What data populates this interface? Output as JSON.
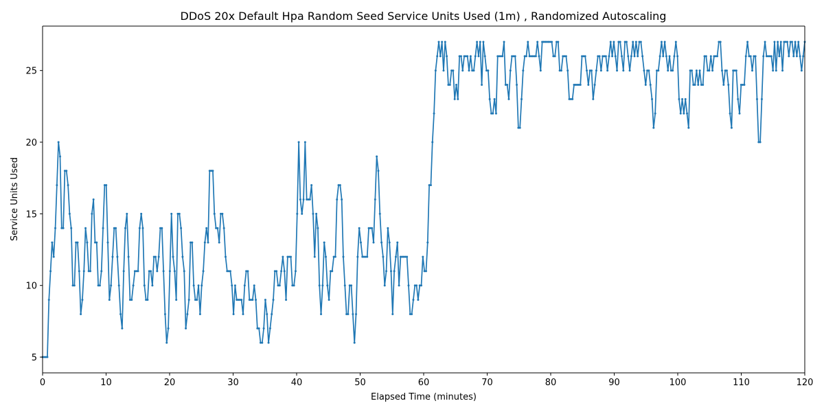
{
  "chart_data": {
    "type": "line",
    "title": "DDoS 20x Default Hpa Random Seed Service Units Used (1m) , Randomized Autoscaling",
    "xlabel": "Elapsed Time (minutes)",
    "ylabel": "Service Units Used",
    "xlim": [
      0,
      120
    ],
    "ylim": [
      3.9,
      28.1
    ],
    "xticks": [
      0,
      10,
      20,
      30,
      40,
      50,
      60,
      70,
      80,
      90,
      100,
      110,
      120
    ],
    "yticks": [
      5,
      10,
      15,
      20,
      25
    ],
    "grid": false,
    "color": "#1f77b4",
    "series": [
      {
        "values": [
          5,
          5,
          5,
          5,
          9,
          11,
          13,
          12,
          14,
          17,
          20,
          19,
          14,
          14,
          18,
          18,
          17,
          15,
          14,
          10,
          10,
          13,
          13,
          11,
          8,
          9,
          11,
          14,
          13,
          11,
          11,
          15,
          16,
          13,
          13,
          10,
          10,
          11,
          14,
          17,
          17,
          13,
          9,
          10,
          12,
          14,
          14,
          12,
          10,
          8,
          7,
          11,
          14,
          15,
          12,
          9,
          9,
          10,
          11,
          11,
          11,
          14,
          15,
          14,
          10,
          9,
          9,
          11,
          11,
          10,
          12,
          12,
          11,
          12,
          14,
          14,
          11,
          8,
          6,
          7,
          11,
          15,
          12,
          11,
          9,
          15,
          15,
          14,
          12,
          11,
          7,
          8,
          9,
          13,
          13,
          10,
          9,
          9,
          10,
          8,
          10,
          11,
          13,
          14,
          13,
          18,
          18,
          18,
          15,
          14,
          14,
          13,
          15,
          15,
          14,
          12,
          11,
          11,
          11,
          10,
          8,
          10,
          9,
          9,
          9,
          9,
          8,
          10,
          11,
          11,
          9,
          9,
          9,
          10,
          9,
          7,
          7,
          6,
          6,
          7,
          9,
          8,
          6,
          7,
          8,
          9,
          11,
          11,
          10,
          10,
          11,
          12,
          11,
          9,
          12,
          12,
          12,
          10,
          10,
          11,
          15,
          20,
          16,
          15,
          16,
          20,
          16,
          16,
          16,
          17,
          15,
          12,
          15,
          14,
          10,
          8,
          10,
          13,
          12,
          10,
          9,
          11,
          11,
          12,
          12,
          16,
          17,
          17,
          16,
          12,
          10,
          8,
          8,
          10,
          10,
          8,
          6,
          8,
          12,
          14,
          13,
          12,
          12,
          12,
          12,
          14,
          14,
          14,
          13,
          16,
          19,
          18,
          15,
          13,
          12,
          10,
          11,
          14,
          13,
          11,
          8,
          11,
          12,
          13,
          10,
          12,
          12,
          12,
          12,
          12,
          10,
          8,
          8,
          9,
          10,
          10,
          9,
          10,
          10,
          12,
          11,
          11,
          13,
          17,
          17,
          20,
          22,
          25,
          26,
          27,
          26,
          27,
          25,
          27,
          26,
          24,
          24,
          25,
          25,
          23,
          24,
          23,
          26,
          26,
          25,
          26,
          26,
          26,
          25,
          26,
          25,
          25,
          26,
          27,
          26,
          27,
          24,
          27,
          26,
          25,
          25,
          23,
          22,
          22,
          23,
          22,
          26,
          26,
          26,
          26,
          27,
          24,
          24,
          23,
          25,
          26,
          26,
          26,
          24,
          21,
          21,
          23,
          25,
          26,
          26,
          27,
          26,
          26,
          26,
          26,
          26,
          27,
          26,
          25,
          27,
          27,
          27,
          27,
          27,
          27,
          27,
          26,
          26,
          27,
          27,
          25,
          25,
          26,
          26,
          26,
          25,
          23,
          23,
          23,
          24,
          24,
          24,
          24,
          24,
          26,
          26,
          26,
          25,
          24,
          25,
          25,
          23,
          24,
          25,
          26,
          26,
          25,
          26,
          26,
          26,
          25,
          26,
          27,
          26,
          27,
          26,
          25,
          27,
          27,
          26,
          25,
          27,
          27,
          26,
          25,
          26,
          27,
          26,
          27,
          26,
          27,
          27,
          26,
          25,
          24,
          25,
          25,
          24,
          23,
          21,
          22,
          25,
          25,
          26,
          27,
          26,
          27,
          26,
          25,
          26,
          25,
          25,
          26,
          27,
          26,
          23,
          22,
          23,
          22,
          23,
          22,
          21,
          25,
          25,
          24,
          24,
          25,
          24,
          25,
          24,
          24,
          26,
          26,
          25,
          25,
          26,
          25,
          26,
          26,
          26,
          27,
          27,
          25,
          24,
          25,
          25,
          24,
          22,
          21,
          25,
          25,
          25,
          23,
          22,
          24,
          24,
          24,
          26,
          27,
          26,
          26,
          25,
          26,
          26,
          23,
          20,
          20,
          23,
          26,
          27,
          26,
          26,
          26,
          26,
          25,
          27,
          25,
          27,
          26,
          27,
          25,
          27,
          27,
          27,
          26,
          27,
          27,
          26,
          27,
          26,
          27,
          26,
          25,
          26,
          27
        ]
      }
    ]
  }
}
